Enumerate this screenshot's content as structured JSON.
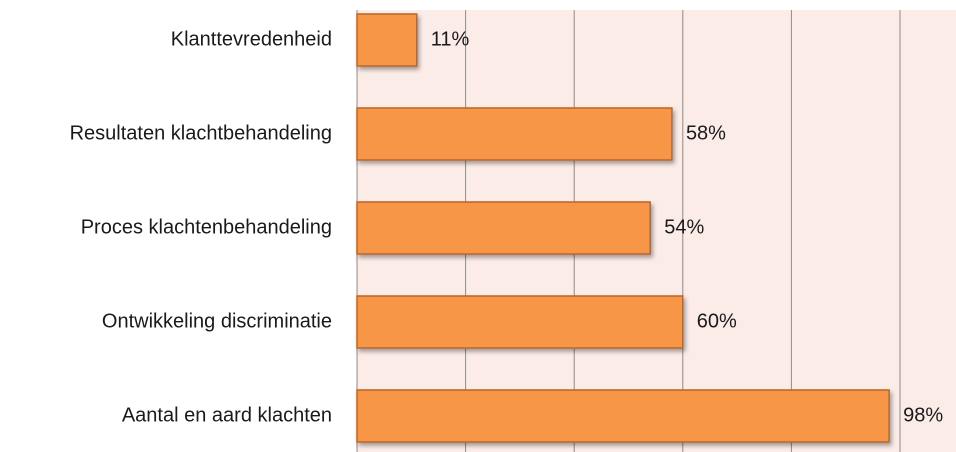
{
  "chart_data": {
    "type": "bar",
    "orientation": "horizontal",
    "categories": [
      "Klanttevredenheid",
      "Resultaten klachtbehandeling",
      "Proces klachtenbehandeling",
      "Ontwikkeling discriminatie",
      "Aantal en aard klachten"
    ],
    "values": [
      11,
      58,
      54,
      60,
      98
    ],
    "value_labels": [
      "11%",
      "58%",
      "54%",
      "60%",
      "98%"
    ],
    "color": "#f79646",
    "xlim": [
      0,
      100
    ],
    "xticks": [
      0,
      20,
      40,
      60,
      80,
      100
    ],
    "grid": true
  }
}
